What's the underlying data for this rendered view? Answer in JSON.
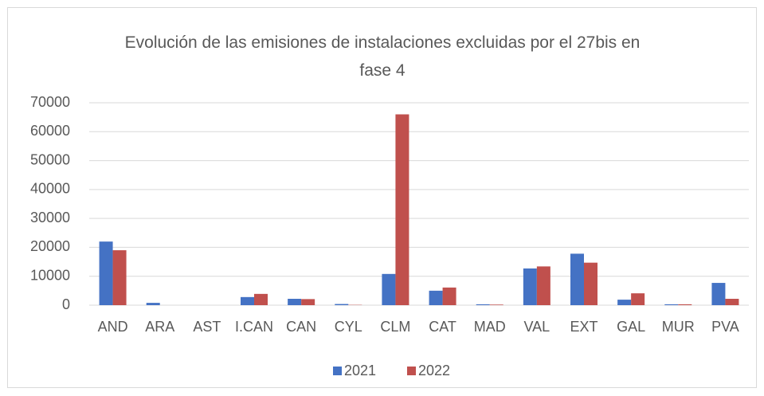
{
  "chart_data": {
    "type": "bar",
    "title": "Evolución de las emisiones de instalaciones excluidas por el 27bis en fase 4",
    "categories": [
      "AND",
      "ARA",
      "AST",
      "I.CAN",
      "CAN",
      "CYL",
      "CLM",
      "CAT",
      "MAD",
      "VAL",
      "EXT",
      "GAL",
      "MUR",
      "PVA"
    ],
    "series": [
      {
        "name": "2021",
        "color": "#4472c4",
        "values": [
          22000,
          800,
          0,
          2800,
          2200,
          400,
          10800,
          5000,
          300,
          12700,
          17800,
          1900,
          300,
          7700
        ]
      },
      {
        "name": "2022",
        "color": "#c0504d",
        "values": [
          19000,
          0,
          0,
          3900,
          2100,
          100,
          66000,
          6100,
          200,
          13400,
          14700,
          4100,
          300,
          2200
        ]
      }
    ],
    "ylim": [
      0,
      70000
    ],
    "yticks": [
      0,
      10000,
      20000,
      30000,
      40000,
      50000,
      60000,
      70000
    ],
    "grid": true,
    "legend": "bottom"
  }
}
